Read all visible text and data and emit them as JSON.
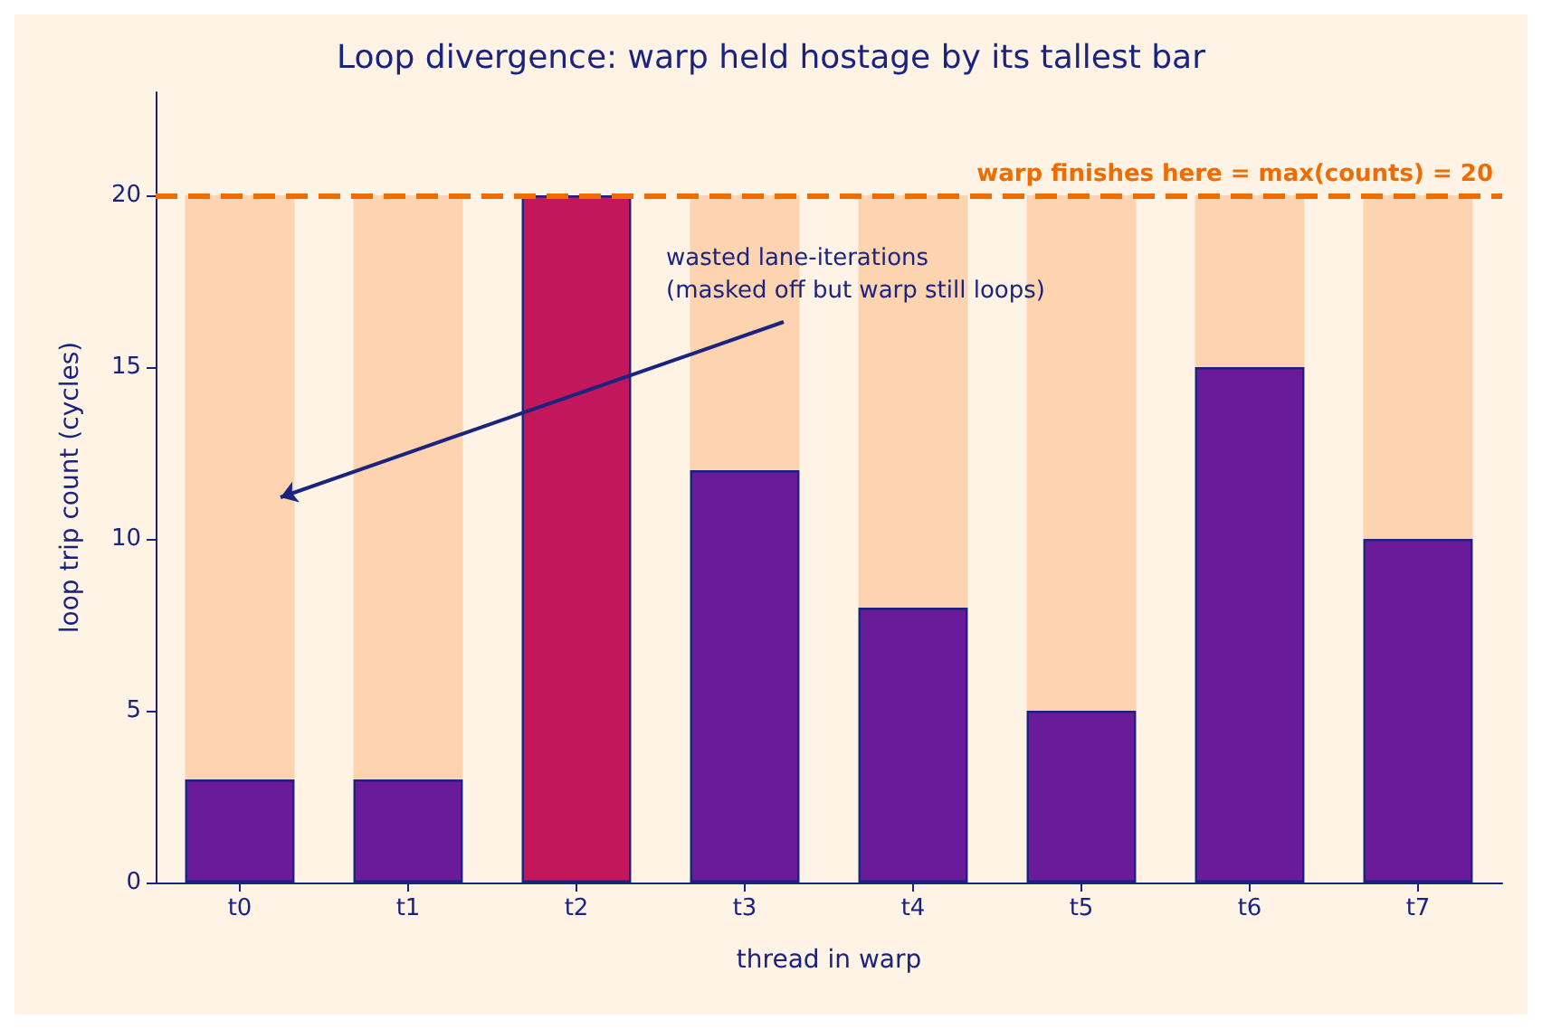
{
  "chart_data": {
    "type": "bar",
    "title": "Loop divergence: warp held hostage by its tallest bar",
    "xlabel": "thread in warp",
    "ylabel": "loop trip count (cycles)",
    "categories": [
      "t0",
      "t1",
      "t2",
      "t3",
      "t4",
      "t5",
      "t6",
      "t7"
    ],
    "stacked": true,
    "series": [
      {
        "values": [
          3,
          3,
          20,
          12,
          8,
          5,
          15,
          10
        ],
        "color": "#6a1b9a",
        "colors": [
          "#6a1b9a",
          "#6a1b9a",
          "#c2185b",
          "#6a1b9a",
          "#6a1b9a",
          "#6a1b9a",
          "#6a1b9a",
          "#6a1b9a"
        ]
      },
      {
        "values": [
          17,
          17,
          0,
          8,
          12,
          15,
          5,
          10
        ],
        "color": "#fdd3b0"
      }
    ],
    "ylim": [
      0,
      23
    ],
    "yticks": [
      0,
      5,
      10,
      15,
      20
    ],
    "grid": false,
    "ref_lines": [
      {
        "axis": "y",
        "value": 20,
        "label": "warp finishes here = max(counts) = 20",
        "color": "#ef6c00",
        "line_style": "dashed"
      }
    ],
    "annotations": [
      "wasted lane-iterations\n(masked off but warp still loops)"
    ]
  }
}
